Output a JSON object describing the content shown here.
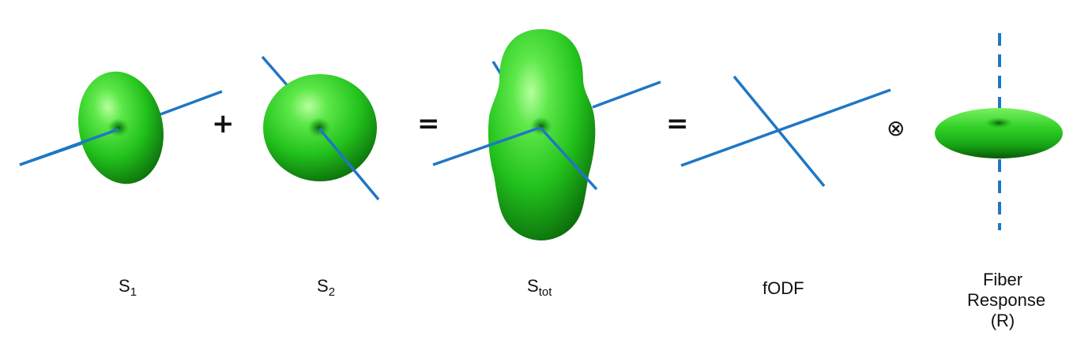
{
  "colors": {
    "fiber_line": "#1f77c4",
    "lobe_light": "#7dfb6a",
    "lobe_mid": "#22c21c",
    "lobe_dark": "#0b6a0b"
  },
  "operators": {
    "plus": "+",
    "equals_1": "=",
    "equals_2": "=",
    "convolve": "⊗"
  },
  "labels": {
    "s1": {
      "base": "S",
      "sub": "1"
    },
    "s2": {
      "base": "S",
      "sub": "2"
    },
    "stot": {
      "base": "S",
      "sub": "tot"
    },
    "fodf": "fODF",
    "fiber_response": [
      "Fiber",
      "Response",
      "(R)"
    ]
  }
}
